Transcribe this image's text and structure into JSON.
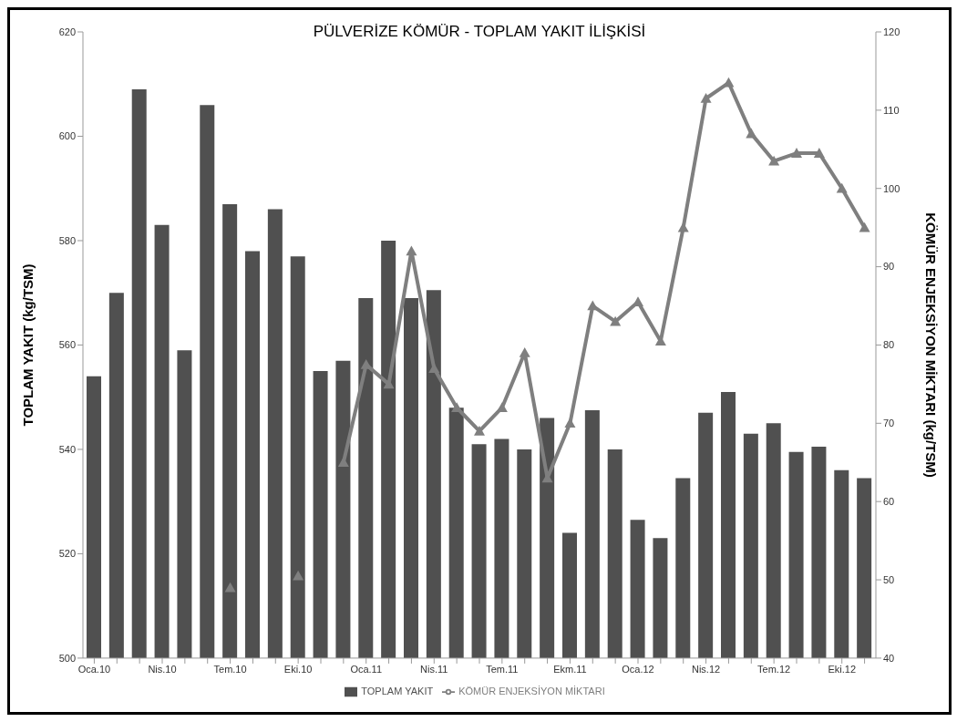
{
  "chart_data": {
    "type": "bar",
    "title": "PÜLVERİZE KÖMÜR - TOPLAM YAKIT İLİŞKİSİ",
    "ylabel": "TOPLAM YAKIT (kg/TSM)",
    "y2label": "KÖMÜR ENJEKSİYON MİKTARI (kg/TSM)",
    "categories": [
      "Oca.10",
      null,
      null,
      "Nis.10",
      null,
      null,
      "Tem.10",
      null,
      null,
      "Eki.10",
      null,
      null,
      "Oca.11",
      null,
      null,
      "Nis.11",
      null,
      null,
      "Tem.11",
      null,
      null,
      "Ekm.11",
      null,
      null,
      "Oca.12",
      null,
      null,
      "Nis.12",
      null,
      null,
      "Tem.12",
      null,
      null,
      "Eki.12",
      null
    ],
    "series": [
      {
        "name": "TOPLAM YAKIT",
        "color": "#505050",
        "values": [
          554,
          570,
          609,
          583,
          559,
          606,
          587,
          578,
          586,
          577,
          555,
          557,
          569,
          580,
          569,
          570.5,
          548,
          541,
          542,
          540,
          546,
          524,
          547.5,
          540,
          526.5,
          523,
          534.5,
          547,
          551,
          543,
          545,
          539.5,
          540.5,
          536,
          534.5
        ]
      },
      {
        "name": "KÖMÜR ENJEKSİYON  MİKTARI",
        "type": "line",
        "axis": "y2",
        "color": "#7f7f7f",
        "values": [
          null,
          null,
          null,
          null,
          null,
          null,
          49,
          null,
          null,
          50.5,
          null,
          65,
          77.5,
          75,
          92,
          77,
          72,
          69,
          72,
          79,
          63,
          70,
          85,
          83,
          85.5,
          80.5,
          95,
          111.5,
          113.5,
          107,
          103.5,
          104.5,
          104.5,
          100,
          95
        ]
      }
    ],
    "ylim": [
      500,
      620
    ],
    "yticks": [
      500,
      520,
      540,
      560,
      580,
      600,
      620
    ],
    "y2lim": [
      40,
      120
    ],
    "y2ticks": [
      40,
      50,
      60,
      70,
      80,
      90,
      100,
      110,
      120
    ],
    "grid": false,
    "legend": "bottom",
    "marker": "triangle",
    "line_style": "solid"
  }
}
